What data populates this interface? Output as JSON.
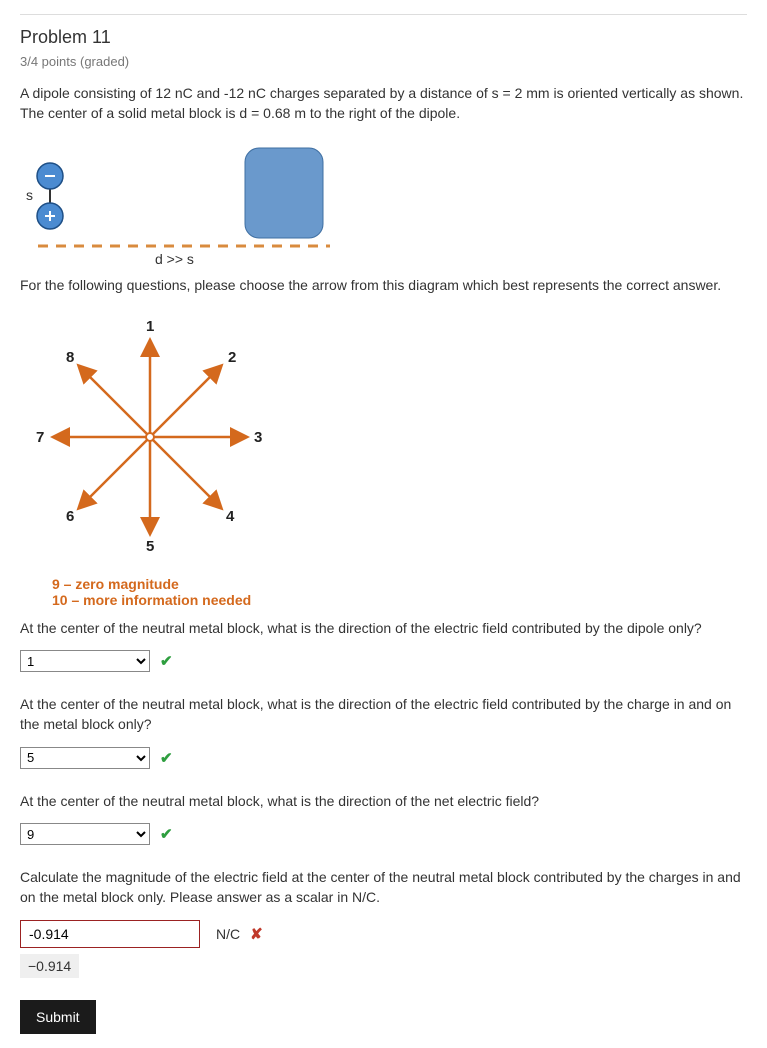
{
  "problem": {
    "title": "Problem 11",
    "grade": "3/4 points (graded)",
    "intro": "A dipole consisting of 12 nC and -12 nC charges separated by a distance of s = 2 mm is oriented vertically as shown. The center of a solid metal block is d = 0.68 m to the right of the dipole.",
    "arrow_instruction": "For the following questions, please choose the arrow from this diagram which best represents the correct answer."
  },
  "dipole_figure": {
    "s_label": "s",
    "d_label": "d >> s",
    "neg_color": "#2b6fb5",
    "pos_color": "#2b6fb5",
    "block_color": "#6a99cc",
    "dash_color": "#d98b3e"
  },
  "arrow_figure": {
    "arrow_color": "#d4691d",
    "labels": [
      "1",
      "2",
      "3",
      "4",
      "5",
      "6",
      "7",
      "8"
    ],
    "legend9_num": "9",
    "legend9_text": " – zero magnitude",
    "legend10_num": "10",
    "legend10_text": " – more information needed"
  },
  "questions": {
    "q1": {
      "text": "At the center of the neutral metal block, what is the direction of the electric field contributed by the dipole only?",
      "value": "1",
      "correct": true
    },
    "q2": {
      "text": "At the center of the neutral metal block, what is the direction of the electric field contributed by the charge in and on the metal block only?",
      "value": "5",
      "correct": true
    },
    "q3": {
      "text": "At the center of the neutral metal block, what is the direction of the net electric field?",
      "value": "9",
      "correct": true
    },
    "q4": {
      "text": "Calculate the magnitude of the electric field at the center of the neutral metal block contributed by the charges in and on the metal block only. Please answer as a scalar in N/C.",
      "value": "-0.914",
      "unit": "N/C",
      "correct": false,
      "prev": "−0.914"
    }
  },
  "options": [
    "1",
    "2",
    "3",
    "4",
    "5",
    "6",
    "7",
    "8",
    "9",
    "10"
  ],
  "buttons": {
    "submit": "Submit"
  }
}
